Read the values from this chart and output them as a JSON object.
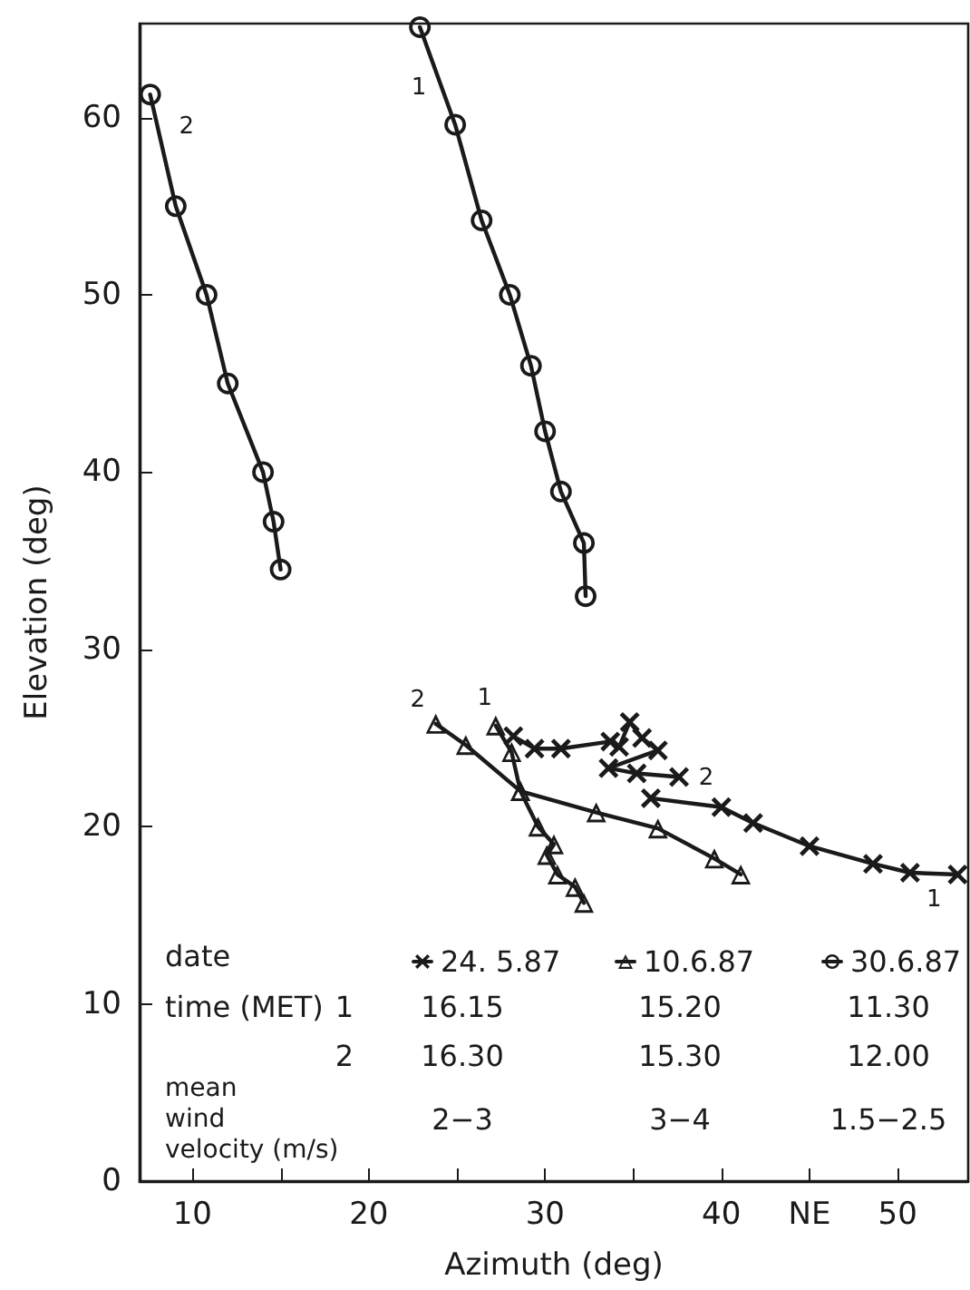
{
  "chart_data": {
    "type": "line",
    "xlabel": "Azimuth (deg)",
    "ylabel": "Elevation (deg)",
    "xlim": [
      7,
      54
    ],
    "ylim": [
      0,
      65.3
    ],
    "xticks": [
      10,
      {
        "value": 15,
        "label": null
      },
      20,
      {
        "value": 25,
        "label": null
      },
      30,
      {
        "value": 35,
        "label": null
      },
      40,
      {
        "value": 45,
        "label": "NE"
      },
      50
    ],
    "yticks": [
      0,
      10,
      20,
      30,
      40,
      50,
      60
    ],
    "grid": false,
    "legend": "bottom",
    "line_style": "solid",
    "series": [
      {
        "name": "24. 5.87",
        "color": "#1a1a1a",
        "marker": "cross",
        "x": [
          53.4,
          50.7,
          48.6,
          45.0,
          41.8,
          40.0,
          36.0,
          null,
          37.6,
          35.2,
          33.6,
          36.4,
          35.5,
          34.8,
          34.2,
          33.7,
          30.9,
          29.4,
          28.2
        ],
        "values": [
          17.3,
          17.4,
          17.9,
          18.9,
          20.2,
          21.1,
          21.6,
          null,
          22.8,
          23.0,
          23.3,
          24.3,
          25.0,
          25.9,
          24.5,
          24.8,
          24.4,
          24.4,
          25.1
        ]
      },
      {
        "name": "10.6.87",
        "color": "#1a1a1a",
        "marker": "triangle",
        "x": [
          27.2,
          28.1,
          28.6,
          29.6,
          30.5,
          30.1,
          30.7,
          31.7,
          32.2,
          null,
          23.8,
          25.5,
          28.6,
          32.9,
          36.4,
          39.6,
          41.1
        ],
        "values": [
          25.7,
          24.2,
          22.0,
          20.0,
          19.0,
          18.4,
          17.3,
          16.6,
          15.7,
          null,
          25.8,
          24.6,
          22.0,
          20.8,
          19.9,
          18.2,
          17.3
        ]
      },
      {
        "name": "30.6.87",
        "color": "#1a1a1a",
        "marker": "circle",
        "x": [
          22.9,
          24.9,
          26.4,
          28.0,
          29.2,
          30.0,
          30.9,
          32.2,
          32.3,
          null,
          7.6,
          9.05,
          10.8,
          12.0,
          14.0,
          14.6,
          15.0
        ],
        "values": [
          65.1,
          59.6,
          54.2,
          50.0,
          46.0,
          42.3,
          38.9,
          36.0,
          33.0,
          null,
          61.3,
          55.0,
          50.0,
          45.0,
          40.0,
          37.2,
          34.5
        ]
      }
    ],
    "annotations": [
      {
        "text": "1",
        "x": 24.9,
        "y": 59.6
      },
      {
        "text": "2",
        "x": 7.6,
        "y": 61.3
      },
      {
        "text": "2",
        "x": 23.8,
        "y": 25.8
      },
      {
        "text": "1",
        "x": 27.2,
        "y": 25.7
      },
      {
        "text": "2",
        "x": 37.6,
        "y": 22.8
      },
      {
        "text": "1",
        "x": 53.4,
        "y": 17.3
      },
      "date",
      "time (MET)",
      "1",
      "2",
      "mean\nwind\nvelocity (m/s)",
      "16.15",
      "16.30",
      "15.20",
      "15.30",
      "11.30",
      "12.00",
      "2−3",
      "3−4",
      "1.5−2.5"
    ]
  }
}
